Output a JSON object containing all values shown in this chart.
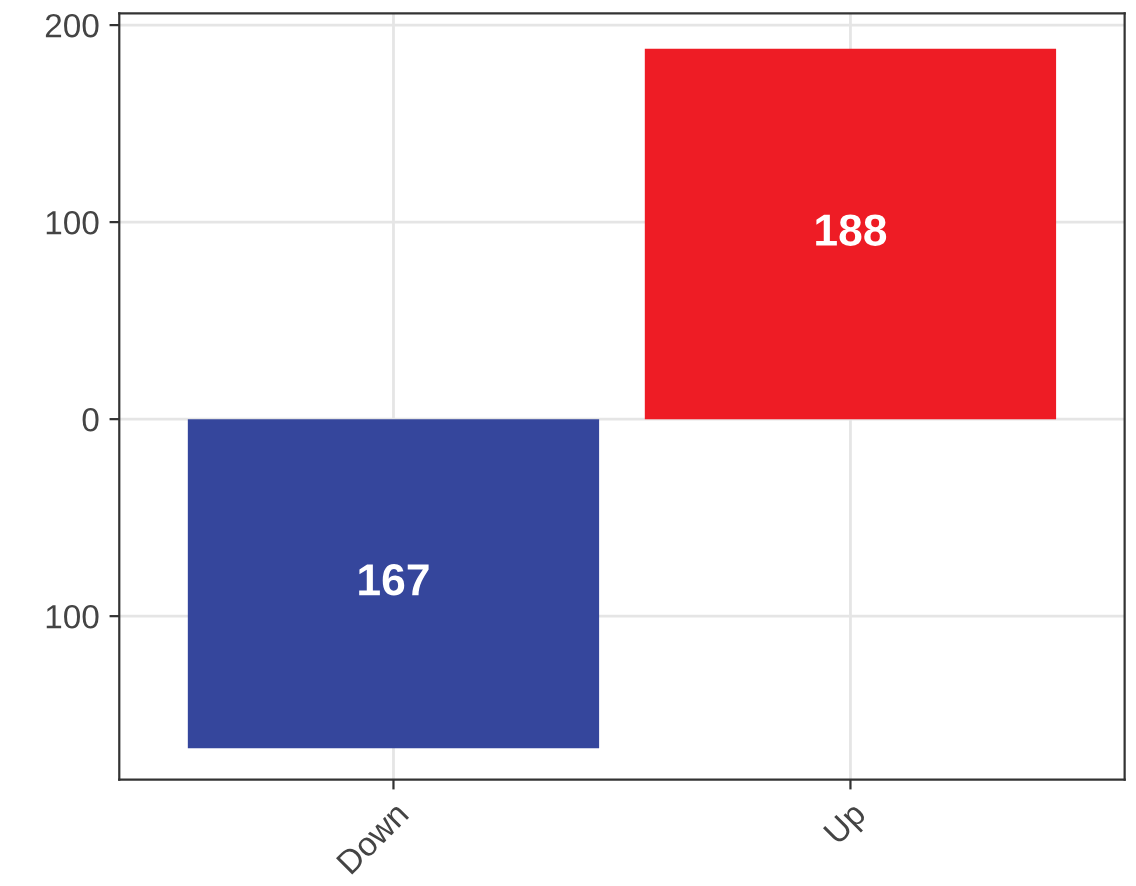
{
  "chart_data": {
    "type": "bar",
    "categories": [
      "Down",
      "Up"
    ],
    "values": [
      167,
      188
    ],
    "base": [
      -167,
      0
    ],
    "colors": [
      "#35469c",
      "#ee1c25"
    ],
    "data_labels": true,
    "ylim": [
      -183,
      206
    ],
    "yticks": [
      {
        "value": -100,
        "label": "100"
      },
      0,
      100,
      200
    ],
    "grid": true
  }
}
